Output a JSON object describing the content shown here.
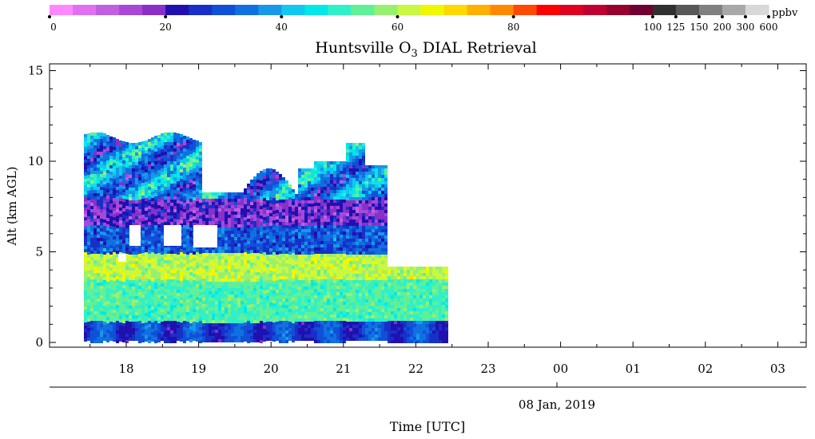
{
  "chart_data": {
    "type": "heatmap",
    "title": "Huntsville O",
    "title_subscript": "3",
    "title_rest": " DIAL Retrieval",
    "ylabel": "Alt (km AGL)",
    "xlabel": "Time [UTC]",
    "date_label": "08 Jan, 2019",
    "colorbar": {
      "unit": "ppbv",
      "tick_labels": [
        "0",
        "20",
        "40",
        "60",
        "80",
        "100",
        "125",
        "150",
        "200",
        "300",
        "600"
      ],
      "colors": [
        "#ff88ff",
        "#e070f0",
        "#c060e0",
        "#a848d8",
        "#8830c8",
        "#2010b0",
        "#1830c8",
        "#1050d8",
        "#1070e0",
        "#1898e8",
        "#10c8f0",
        "#00e8e8",
        "#30f0c8",
        "#60f098",
        "#98f070",
        "#c8f840",
        "#f0f800",
        "#ffd800",
        "#ffb000",
        "#ff8800",
        "#ff4800",
        "#ff0000",
        "#e00020",
        "#c00030",
        "#980030",
        "#700030",
        "#303030",
        "#585858",
        "#808080",
        "#a8a8a8",
        "#d8d8d8"
      ],
      "color_tick_index": [
        0,
        5,
        10,
        15,
        20,
        25,
        26,
        27,
        28,
        29,
        30
      ]
    },
    "x_tick_labels": [
      "18",
      "19",
      "20",
      "21",
      "22",
      "23",
      "00",
      "01",
      "02",
      "03"
    ],
    "y_tick_labels": [
      "0",
      "5",
      "10",
      "15"
    ],
    "ylim": [
      0,
      15.5
    ],
    "grid": false,
    "data_profile": {
      "note_bands": [
        {
          "alt_range": [
            0.2,
            1.2
          ],
          "ppbv": 30
        },
        {
          "alt_range": [
            1.2,
            3.5
          ],
          "ppbv": 50
        },
        {
          "alt_range": [
            3.5,
            5.0
          ],
          "ppbv": 58
        },
        {
          "alt_range": [
            5.0,
            6.5
          ],
          "ppbv": 25
        },
        {
          "alt_range": [
            6.5,
            8.0
          ],
          "ppbv": 14
        },
        {
          "alt_range": [
            8.0,
            11.5
          ],
          "ppbv": 35
        }
      ]
    }
  }
}
